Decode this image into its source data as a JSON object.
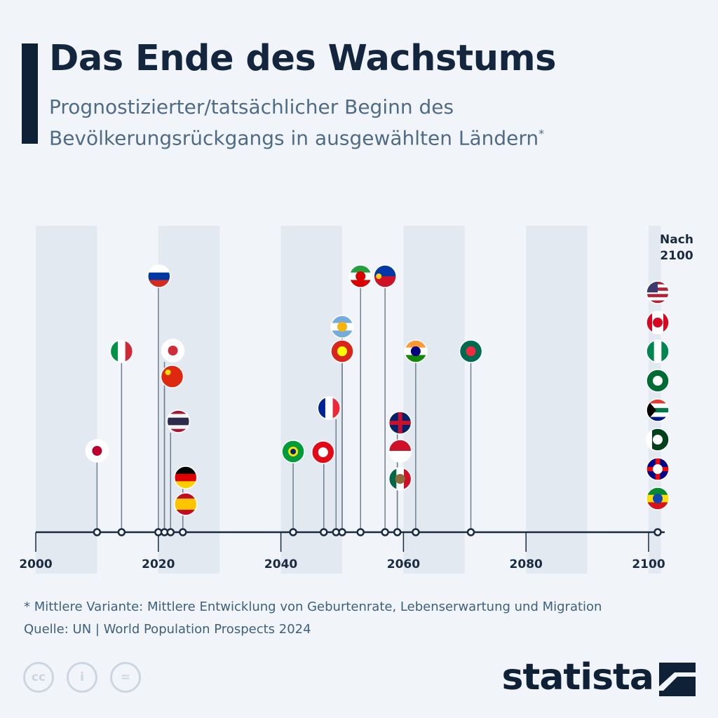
{
  "header": {
    "title": "Das Ende des Wachstums",
    "subtitle": "Prognostizierter/tatsächlicher Beginn des Bevölkerungsrückgangs in ausgewählten Ländern",
    "footnote_mark": "*"
  },
  "footer": {
    "note": "* Mittlere Variante: Mittlere Entwicklung von Geburtenrate, Lebenserwartung und Migration",
    "source": "Quelle: UN | World Population Prospects 2024",
    "brand": "statista",
    "cc_icons": [
      "cc-icon",
      "by-icon",
      "nd-icon"
    ],
    "cc_labels": [
      "cc",
      "i",
      "="
    ]
  },
  "chart_data": {
    "type": "timeline",
    "title": "Das Ende des Wachstums",
    "xlabel": "",
    "ylabel": "",
    "xlim": [
      2000,
      2100
    ],
    "x_ticks": [
      "2000",
      "2020",
      "2040",
      "2060",
      "2080",
      "2100"
    ],
    "after_label": "Nach 2100",
    "colors": {
      "axis": "#1a2b40",
      "band": "#e2e9f1",
      "stem": "#6f7f90"
    },
    "points": [
      {
        "country": "japan",
        "year": 2010,
        "flag": {
          "dir": "h",
          "stripes": [
            "#ffffff"
          ],
          "emblem": "#bc002d"
        }
      },
      {
        "country": "italy",
        "year": 2014,
        "flag": {
          "dir": "v",
          "stripes": [
            "#009246",
            "#ffffff",
            "#ce2b37"
          ]
        }
      },
      {
        "country": "russia",
        "year": 2020,
        "flag": {
          "dir": "h",
          "stripes": [
            "#ffffff",
            "#0039a6",
            "#d52b1e"
          ]
        }
      },
      {
        "country": "south-korea",
        "year": 2021,
        "flag": {
          "dir": "h",
          "stripes": [
            "#ffffff"
          ],
          "emblem": "#cd2e3a"
        }
      },
      {
        "country": "china",
        "year": 2021,
        "flag": {
          "dir": "h",
          "stripes": [
            "#de2910"
          ],
          "emblem": "#ffde00",
          "emblem_pos": "tl"
        }
      },
      {
        "country": "thailand",
        "year": 2022,
        "flag": {
          "dir": "h",
          "stripes": [
            "#a51931",
            "#f4f5f8",
            "#2d2a4a",
            "#2d2a4a",
            "#f4f5f8",
            "#a51931"
          ]
        }
      },
      {
        "country": "germany",
        "year": 2024,
        "flag": {
          "dir": "h",
          "stripes": [
            "#000000",
            "#dd0000",
            "#ffce00"
          ]
        }
      },
      {
        "country": "spain",
        "year": 2024,
        "flag": {
          "dir": "h",
          "stripes": [
            "#c60b1e",
            "#ffc400",
            "#ffc400",
            "#c60b1e"
          ]
        }
      },
      {
        "country": "brazil",
        "year": 2042,
        "flag": {
          "dir": "h",
          "stripes": [
            "#009c3b"
          ],
          "emblem": "#ffdf00",
          "emblem2": "#002776"
        }
      },
      {
        "country": "turkey",
        "year": 2047,
        "flag": {
          "dir": "h",
          "stripes": [
            "#e30a17"
          ],
          "emblem": "#ffffff"
        }
      },
      {
        "country": "france",
        "year": 2049,
        "flag": {
          "dir": "v",
          "stripes": [
            "#002395",
            "#ffffff",
            "#ed2939"
          ]
        }
      },
      {
        "country": "argentina",
        "year": 2050,
        "flag": {
          "dir": "h",
          "stripes": [
            "#74acdf",
            "#ffffff",
            "#74acdf"
          ],
          "emblem": "#f6b40e"
        }
      },
      {
        "country": "vietnam",
        "year": 2050,
        "flag": {
          "dir": "h",
          "stripes": [
            "#da251d"
          ],
          "emblem": "#ffff00"
        }
      },
      {
        "country": "iran",
        "year": 2053,
        "flag": {
          "dir": "h",
          "stripes": [
            "#239f40",
            "#ffffff",
            "#da0000"
          ],
          "emblem": "#da0000"
        }
      },
      {
        "country": "philippines",
        "year": 2057,
        "flag": {
          "dir": "h",
          "stripes": [
            "#0038a8",
            "#ce1126"
          ],
          "emblem": "#fcd116",
          "emblem_pos": "l"
        }
      },
      {
        "country": "united-kingdom",
        "year": 2059,
        "flag": {
          "dir": "h",
          "stripes": [
            "#012169"
          ],
          "cross": "#c8102e"
        }
      },
      {
        "country": "indonesia",
        "year": 2059,
        "flag": {
          "dir": "h",
          "stripes": [
            "#ce1126",
            "#ffffff"
          ]
        }
      },
      {
        "country": "mexico",
        "year": 2059,
        "flag": {
          "dir": "v",
          "stripes": [
            "#006847",
            "#ffffff",
            "#ce1126"
          ],
          "emblem": "#8c6a3a"
        }
      },
      {
        "country": "india",
        "year": 2062,
        "flag": {
          "dir": "h",
          "stripes": [
            "#ff9933",
            "#ffffff",
            "#138808"
          ],
          "emblem": "#000080"
        }
      },
      {
        "country": "bangladesh",
        "year": 2071,
        "flag": {
          "dir": "h",
          "stripes": [
            "#006a4e"
          ],
          "emblem": "#f42a41"
        }
      },
      {
        "country": "usa",
        "year": "after-2100",
        "flag": {
          "dir": "h",
          "stripes": [
            "#b22234",
            "#ffffff",
            "#b22234",
            "#ffffff",
            "#b22234",
            "#ffffff",
            "#b22234"
          ],
          "canton": "#3c3b6e"
        }
      },
      {
        "country": "canada",
        "year": "after-2100",
        "flag": {
          "dir": "v",
          "stripes": [
            "#d80621",
            "#ffffff",
            "#ffffff",
            "#d80621"
          ],
          "emblem": "#d80621"
        }
      },
      {
        "country": "nigeria",
        "year": "after-2100",
        "flag": {
          "dir": "v",
          "stripes": [
            "#008751",
            "#ffffff",
            "#008751"
          ]
        }
      },
      {
        "country": "saudi-arabia",
        "year": "after-2100",
        "flag": {
          "dir": "h",
          "stripes": [
            "#006c35"
          ],
          "emblem": "#ffffff"
        }
      },
      {
        "country": "south-africa",
        "year": "after-2100",
        "flag": {
          "dir": "h",
          "stripes": [
            "#e03c31",
            "#ffffff",
            "#007749",
            "#ffffff",
            "#001489"
          ],
          "triangle": "#000000"
        }
      },
      {
        "country": "pakistan",
        "year": "after-2100",
        "flag": {
          "dir": "v",
          "stripes": [
            "#ffffff",
            "#01411c",
            "#01411c",
            "#01411c"
          ],
          "emblem": "#ffffff"
        }
      },
      {
        "country": "australia",
        "year": "after-2100",
        "flag": {
          "dir": "h",
          "stripes": [
            "#00008b"
          ],
          "emblem": "#ffffff",
          "cross": "#ff0000"
        }
      },
      {
        "country": "ethiopia",
        "year": "after-2100",
        "flag": {
          "dir": "h",
          "stripes": [
            "#078930",
            "#fcdd09",
            "#da121a"
          ],
          "emblem": "#0f47af"
        }
      }
    ]
  }
}
